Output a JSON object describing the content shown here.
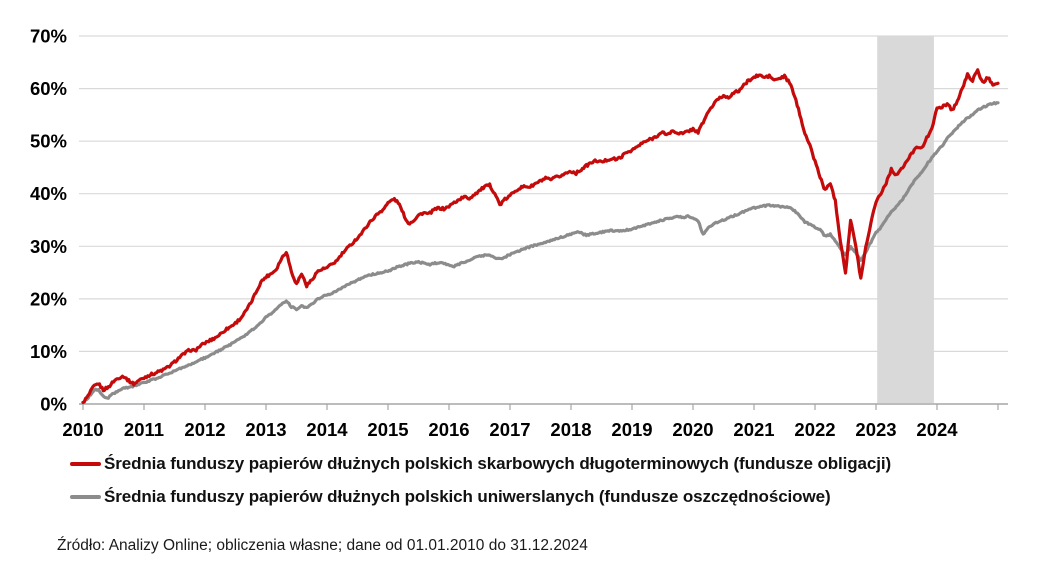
{
  "chart_data": {
    "type": "line",
    "title": "",
    "xlabel": "",
    "ylabel": "",
    "x_start_year": 2010,
    "x_step_months": 1,
    "date_range": "01.01.2010 - 31.12.2024",
    "xlim": [
      2010,
      2025.2
    ],
    "ylim": [
      0,
      70
    ],
    "grid": true,
    "legend_position": "bottom-left",
    "x_ticks": {
      "values": [
        2010,
        2011,
        2012,
        2013,
        2014,
        2015,
        2016,
        2017,
        2018,
        2019,
        2020,
        2021,
        2022,
        2023,
        2024
      ],
      "labels": [
        "2010",
        "2011",
        "2012",
        "2013",
        "2014",
        "2015",
        "2016",
        "2017",
        "2018",
        "2019",
        "2020",
        "2021",
        "2022",
        "2023",
        "2024"
      ]
    },
    "y_ticks": {
      "values": [
        0,
        10,
        20,
        30,
        40,
        50,
        60,
        70
      ],
      "labels": [
        "0%",
        "10%",
        "20%",
        "30%",
        "40%",
        "50%",
        "60%",
        "70%"
      ]
    },
    "highlight_band": {
      "x_start": 2023.02,
      "x_end": 2023.95,
      "color": "#d9d9d9"
    },
    "series": [
      {
        "name": "Średnia funduszy papierów dłużnych polskich skarbowych długoterminowych (fundusze obligacji)",
        "color": "#c40a0a",
        "values": [
          0.3,
          1.5,
          3.2,
          3.9,
          2.7,
          3.2,
          4.3,
          5.0,
          5.3,
          4.4,
          3.8,
          4.5,
          5.0,
          5.5,
          5.8,
          6.2,
          6.6,
          7.2,
          8.0,
          8.9,
          9.6,
          10.3,
          10.1,
          11.0,
          11.6,
          12.1,
          12.6,
          13.3,
          14.1,
          14.7,
          15.4,
          16.3,
          17.6,
          19.2,
          21.2,
          23.2,
          24.2,
          24.8,
          25.6,
          27.6,
          29.0,
          25.2,
          22.8,
          24.8,
          22.5,
          23.6,
          25.1,
          25.6,
          25.9,
          26.6,
          27.3,
          28.6,
          29.6,
          30.6,
          31.6,
          32.7,
          34.1,
          35.2,
          36.2,
          37.0,
          38.2,
          39.0,
          38.4,
          36.2,
          34.3,
          34.9,
          35.9,
          36.4,
          36.1,
          36.9,
          37.3,
          37.1,
          37.6,
          38.3,
          38.9,
          39.4,
          39.1,
          39.9,
          40.6,
          41.3,
          41.6,
          40.1,
          37.9,
          38.9,
          39.6,
          40.6,
          41.1,
          41.4,
          41.3,
          41.9,
          42.4,
          42.9,
          42.6,
          43.1,
          43.4,
          43.9,
          44.3,
          43.9,
          44.6,
          45.3,
          45.9,
          46.3,
          46.0,
          46.4,
          46.7,
          46.5,
          47.1,
          47.9,
          48.3,
          48.9,
          49.6,
          50.1,
          50.5,
          51.1,
          51.6,
          51.3,
          51.9,
          51.6,
          51.4,
          51.9,
          52.3,
          51.7,
          53.6,
          55.6,
          56.9,
          58.1,
          58.6,
          58.4,
          59.1,
          59.6,
          60.6,
          61.6,
          62.1,
          62.6,
          62.1,
          62.4,
          61.6,
          61.9,
          62.3,
          61.1,
          58.6,
          55.1,
          51.6,
          49.1,
          46.2,
          43.2,
          40.6,
          42.1,
          38.6,
          31.1,
          25.0,
          35.0,
          30.1,
          23.9,
          29.9,
          34.5,
          38.6,
          40.1,
          42.1,
          44.6,
          43.6,
          44.6,
          46.1,
          47.6,
          49.1,
          48.6,
          50.6,
          52.6,
          56.1,
          56.6,
          57.1,
          55.9,
          57.6,
          60.1,
          62.6,
          61.6,
          63.4,
          61.1,
          62.1,
          60.9,
          61.0
        ]
      },
      {
        "name": "Średnia funduszy papierów dłużnych polskich uniwerslanych (fundusze oszczędnościowe)",
        "color": "#8c8c8c",
        "values": [
          0.3,
          1.2,
          2.4,
          2.9,
          1.4,
          1.2,
          2.0,
          2.6,
          3.0,
          3.2,
          3.4,
          3.8,
          4.1,
          4.4,
          4.7,
          5.1,
          5.5,
          5.9,
          6.3,
          6.7,
          7.1,
          7.5,
          7.9,
          8.4,
          8.8,
          9.3,
          9.8,
          10.3,
          10.8,
          11.3,
          11.9,
          12.5,
          13.2,
          13.9,
          14.6,
          15.4,
          16.5,
          17.2,
          18.0,
          19.0,
          19.7,
          18.5,
          18.0,
          18.6,
          18.3,
          19.0,
          19.8,
          20.4,
          20.7,
          21.1,
          21.6,
          22.1,
          22.6,
          23.1,
          23.6,
          24.0,
          24.4,
          24.7,
          24.9,
          25.1,
          25.3,
          25.7,
          26.1,
          26.4,
          26.7,
          26.9,
          27.0,
          26.8,
          26.5,
          26.7,
          26.9,
          26.8,
          26.4,
          26.2,
          26.6,
          27.0,
          27.4,
          27.8,
          28.1,
          28.3,
          28.2,
          27.9,
          27.6,
          28.0,
          28.4,
          28.8,
          29.2,
          29.6,
          29.9,
          30.2,
          30.5,
          30.8,
          31.1,
          31.4,
          31.7,
          32.0,
          32.3,
          32.7,
          32.5,
          32.1,
          32.3,
          32.5,
          32.7,
          32.9,
          33.0,
          32.9,
          33.0,
          33.1,
          33.3,
          33.6,
          33.9,
          34.2,
          34.4,
          34.7,
          35.0,
          35.2,
          35.4,
          35.6,
          35.5,
          35.7,
          35.4,
          34.9,
          32.2,
          33.6,
          34.2,
          34.7,
          35.0,
          35.4,
          35.8,
          36.2,
          36.6,
          37.0,
          37.3,
          37.6,
          37.7,
          37.8,
          37.7,
          37.6,
          37.5,
          37.3,
          36.8,
          35.8,
          34.6,
          34.2,
          33.6,
          33.1,
          31.9,
          32.3,
          31.1,
          29.6,
          28.3,
          29.9,
          28.9,
          27.3,
          28.9,
          30.8,
          32.6,
          33.6,
          35.1,
          36.6,
          37.6,
          38.6,
          40.1,
          41.6,
          43.1,
          44.1,
          45.6,
          46.9,
          48.1,
          49.1,
          50.6,
          51.6,
          52.6,
          53.6,
          54.4,
          55.1,
          55.9,
          56.4,
          56.9,
          57.2,
          57.3
        ]
      }
    ]
  },
  "legend": {
    "items": [
      {
        "label": "Średnia funduszy papierów dłużnych polskich skarbowych długoterminowych (fundusze obligacji)",
        "color": "#c40a0a"
      },
      {
        "label": "Średnia funduszy papierów dłużnych polskich uniwerslanych (fundusze oszczędnościowe)",
        "color": "#8c8c8c"
      }
    ]
  },
  "footer": {
    "source": "Źródło: Analizy Online; obliczenia własne; dane od 01.01.2010 do 31.12.2024"
  },
  "colors": {
    "series_bonds": "#c40a0a",
    "series_universal": "#8c8c8c",
    "gridline": "#d9d9d9",
    "highlight_band": "#d9d9d9",
    "axis": "#a6a6a6",
    "tick_label": "#000000",
    "background": "#ffffff"
  }
}
